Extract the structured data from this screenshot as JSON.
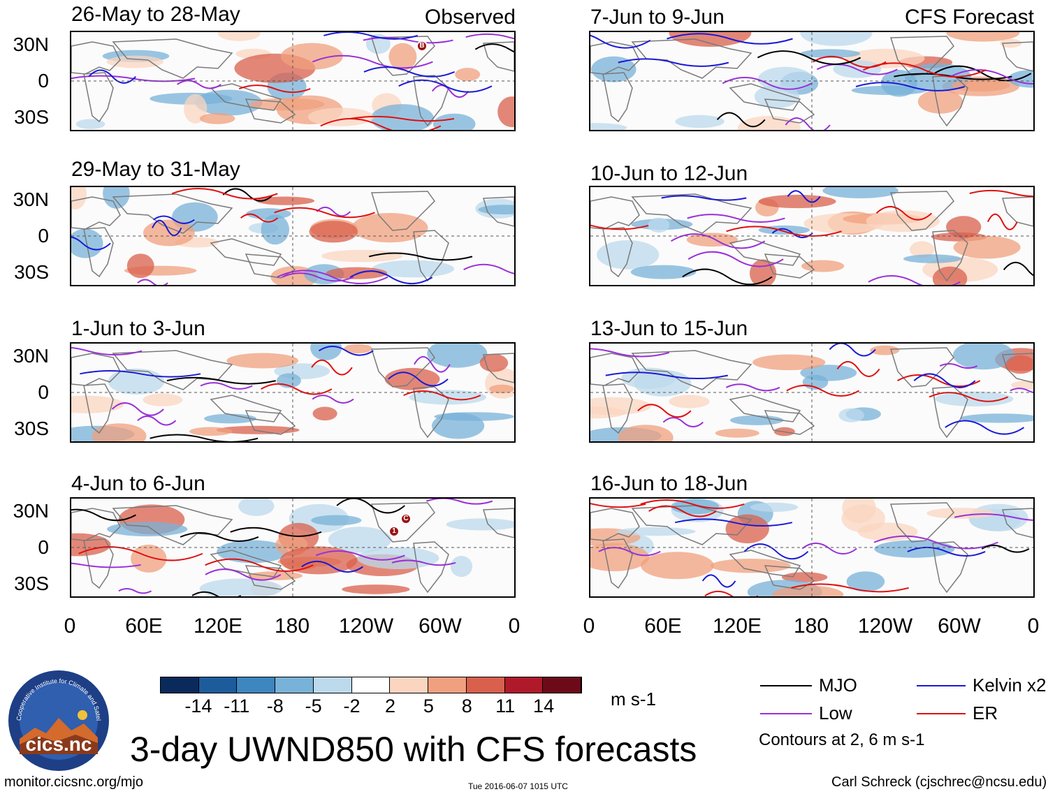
{
  "header": {
    "observed_label": "Observed",
    "forecast_label": "CFS Forecast"
  },
  "panels_observed": [
    {
      "title": "26-May to 28-May"
    },
    {
      "title": "29-May to 31-May"
    },
    {
      "title": "1-Jun to 3-Jun"
    },
    {
      "title": "4-Jun to 6-Jun"
    }
  ],
  "panels_forecast": [
    {
      "title": "7-Jun to 9-Jun"
    },
    {
      "title": "10-Jun to 12-Jun"
    },
    {
      "title": "13-Jun to 15-Jun"
    },
    {
      "title": "16-Jun to 18-Jun"
    }
  ],
  "lat_labels": [
    "30N",
    "0",
    "30S"
  ],
  "lon_labels": [
    "0",
    "60E",
    "120E",
    "180",
    "120W",
    "60W",
    "0"
  ],
  "storm_markers": {
    "panel1": [
      "B"
    ],
    "panel4": [
      "1",
      "C"
    ]
  },
  "colorbar": {
    "unit": "m s-1",
    "tick_labels": [
      "-14",
      "-11",
      "-8",
      "-5",
      "-2",
      "2",
      "5",
      "8",
      "11",
      "14"
    ],
    "colors": [
      "#0a2a5c",
      "#1d5c9c",
      "#3d86bf",
      "#78b2d8",
      "#bcdaec",
      "#ffffff",
      "#fbd5c0",
      "#f0a07e",
      "#d9604c",
      "#b0192a",
      "#6d0a1a"
    ]
  },
  "legend": {
    "mjo": "MJO",
    "kelvin": "Kelvin x2",
    "low": "Low",
    "er": "ER",
    "contours": "Contours at 2, 6 m s-1",
    "colors": {
      "mjo": "#000000",
      "kelvin": "#1a1ad6",
      "low": "#9a30d8",
      "er": "#e01010"
    }
  },
  "logo": {
    "text": "cics.nc",
    "ring_text": "Cooperative Institute for Climate and Satellites"
  },
  "main_title": "3-day UWND850 with CFS forecasts",
  "footer": {
    "website": "monitor.cicsnc.org/mjo",
    "timestamp": "Tue 2016-06-07 1015 UTC",
    "author": "Carl Schreck (cjschrec@ncsu.edu)"
  }
}
